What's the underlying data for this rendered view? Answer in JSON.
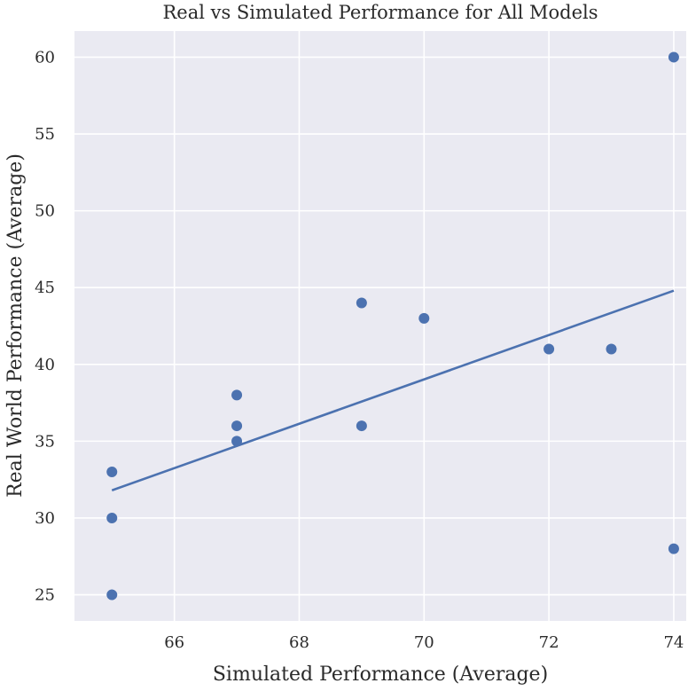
{
  "chart_data": {
    "type": "scatter",
    "title": "Real vs Simulated Performance for All Models",
    "xlabel": "Simulated Performance (Average)",
    "ylabel": "Real World Performance (Average)",
    "xlim": [
      64.4,
      74.2
    ],
    "ylim": [
      23.3,
      61.7
    ],
    "xticks": [
      66,
      68,
      70,
      72,
      74
    ],
    "yticks": [
      25,
      30,
      35,
      40,
      45,
      50,
      55,
      60
    ],
    "grid": true,
    "legend": "none",
    "colors": {
      "background": "#eaeaf2",
      "grid": "#ffffff",
      "points": "#4c72b0",
      "line": "#4c72b0"
    },
    "points": [
      {
        "x": 65,
        "y": 33
      },
      {
        "x": 65,
        "y": 30
      },
      {
        "x": 65,
        "y": 25
      },
      {
        "x": 67,
        "y": 38
      },
      {
        "x": 67,
        "y": 36
      },
      {
        "x": 67,
        "y": 35
      },
      {
        "x": 69,
        "y": 44
      },
      {
        "x": 69,
        "y": 36
      },
      {
        "x": 70,
        "y": 43
      },
      {
        "x": 72,
        "y": 41
      },
      {
        "x": 73,
        "y": 41
      },
      {
        "x": 74,
        "y": 60
      },
      {
        "x": 74,
        "y": 28
      }
    ],
    "trend_line": {
      "x": [
        65,
        74
      ],
      "y": [
        31.8,
        44.8
      ]
    }
  }
}
